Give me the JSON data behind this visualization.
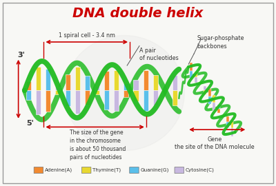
{
  "title": "DNA double helix",
  "title_color": "#cc0000",
  "title_fontsize": 14,
  "bg_color": "#f8f8f5",
  "border_color": "#999999",
  "helix_color": "#22bb22",
  "helix_linewidth": 5,
  "annotation_color": "#cc0000",
  "text_color": "#333333",
  "legend_items": [
    {
      "label": "Adenine(A)",
      "color": "#f28a30"
    },
    {
      "label": "Thymine(T)",
      "color": "#e8d830"
    },
    {
      "label": "Guanine(G)",
      "color": "#5bbfea"
    },
    {
      "label": "Cytosine(C)",
      "color": "#c8b8e0"
    }
  ],
  "base_colors": [
    "#f28a30",
    "#e8d830",
    "#5bbfea",
    "#c8b8e0",
    "#f28a30",
    "#e8d830",
    "#5bbfea",
    "#c8b8e0",
    "#f28a30",
    "#e8d830",
    "#5bbfea",
    "#c8b8e0"
  ],
  "annotations": {
    "typical_cell": "1 spiral cell - 3.4 nm",
    "pair_nucleotides": "A pair\nof nucleotides",
    "sugar_phosphate": "Sugar-phosphate\nbackbones",
    "gene_size": "The size of the gene\nin the chromosome\nis about 50 thousand\npairs of nucleotides",
    "gene": "Gene\nthe site of the DNA molecule",
    "label_3prime": "3'",
    "label_5prime": "5'"
  },
  "figsize": [
    4.0,
    2.7
  ],
  "dpi": 100
}
